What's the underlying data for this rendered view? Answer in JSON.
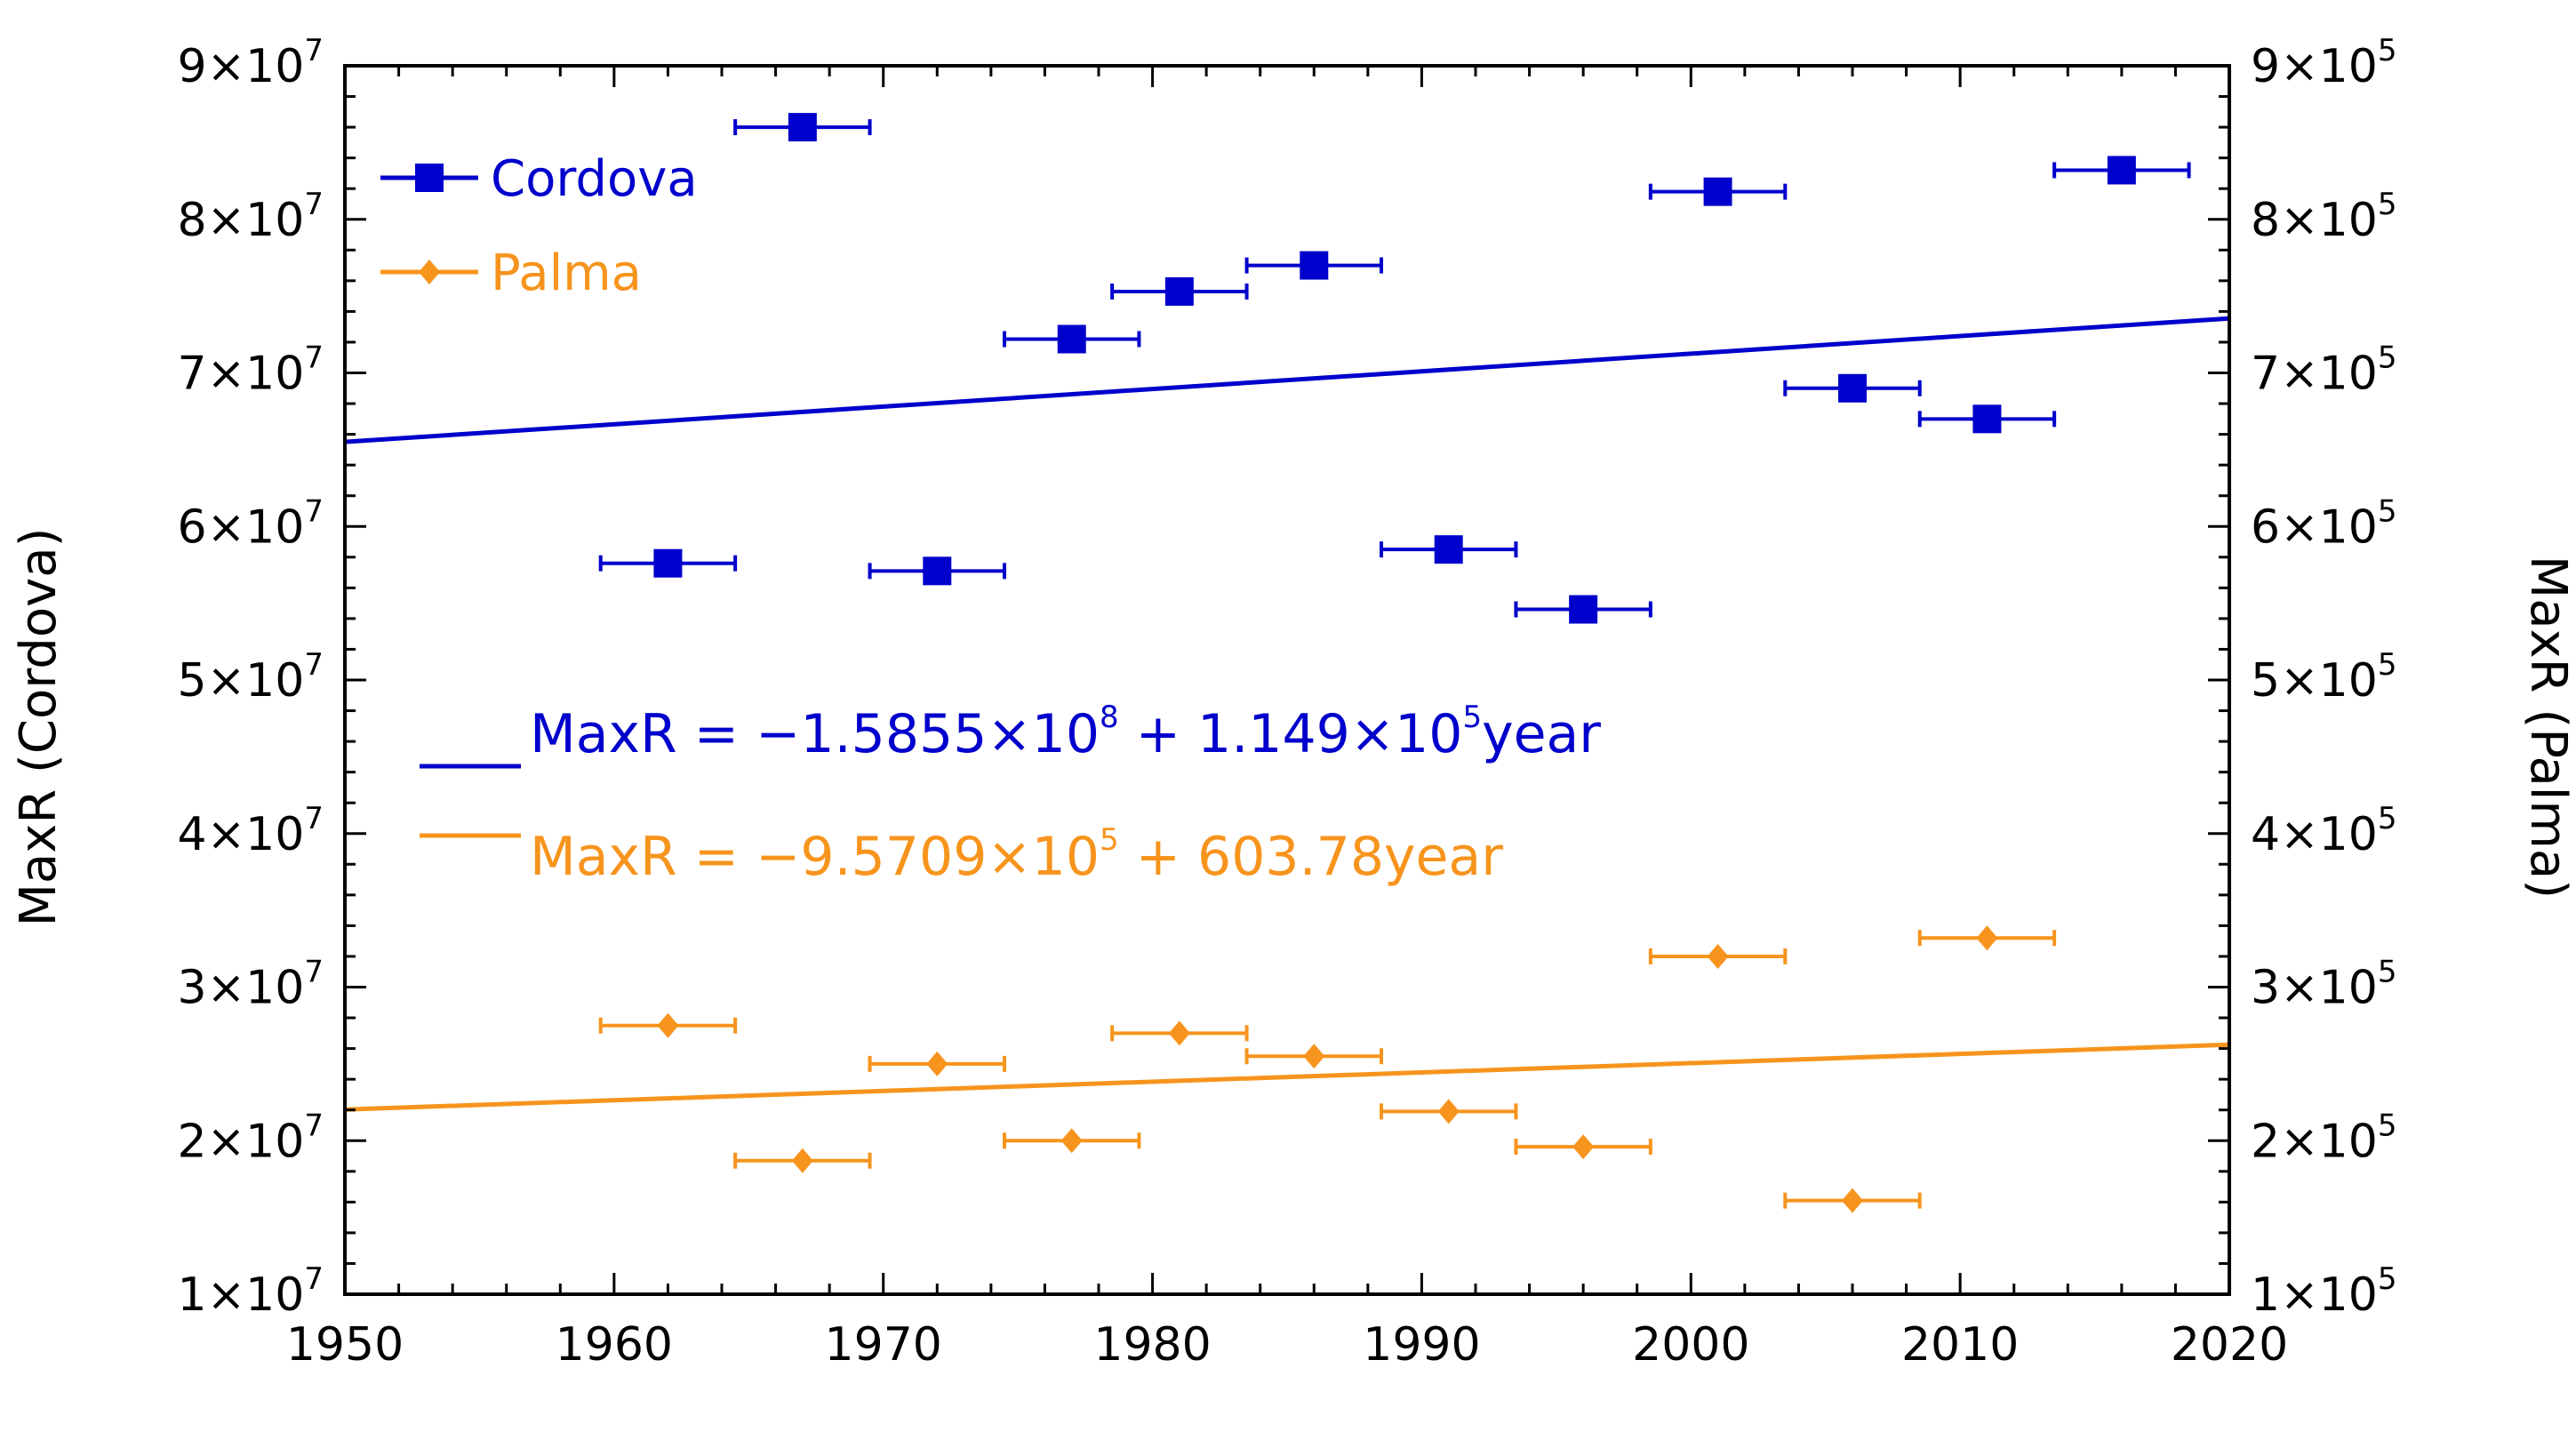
{
  "chart_data": {
    "type": "scatter",
    "title": "",
    "xlabel": "",
    "ylabel_left": "MaxR (Cordova)",
    "ylabel_right": "MaxR (Palma)",
    "xlim": [
      1950,
      2020
    ],
    "ylim_left": [
      10000000,
      90000000
    ],
    "ylim_right": [
      100000,
      900000
    ],
    "x_ticks": [
      "1950",
      "1960",
      "1970",
      "1980",
      "1990",
      "2000",
      "2010",
      "2020"
    ],
    "y_ticks_left": [
      {
        "mant": "1×10",
        "exp": "7"
      },
      {
        "mant": "2×10",
        "exp": "7"
      },
      {
        "mant": "3×10",
        "exp": "7"
      },
      {
        "mant": "4×10",
        "exp": "7"
      },
      {
        "mant": "5×10",
        "exp": "7"
      },
      {
        "mant": "6×10",
        "exp": "7"
      },
      {
        "mant": "7×10",
        "exp": "7"
      },
      {
        "mant": "8×10",
        "exp": "7"
      },
      {
        "mant": "9×10",
        "exp": "7"
      }
    ],
    "y_ticks_right": [
      {
        "mant": "1×10",
        "exp": "5"
      },
      {
        "mant": "2×10",
        "exp": "5"
      },
      {
        "mant": "3×10",
        "exp": "5"
      },
      {
        "mant": "4×10",
        "exp": "5"
      },
      {
        "mant": "5×10",
        "exp": "5"
      },
      {
        "mant": "6×10",
        "exp": "5"
      },
      {
        "mant": "7×10",
        "exp": "5"
      },
      {
        "mant": "8×10",
        "exp": "5"
      },
      {
        "mant": "9×10",
        "exp": "5"
      }
    ],
    "legend": [
      {
        "name": "Cordova",
        "color": "#0000cc",
        "marker": "square"
      },
      {
        "name": "Palma",
        "color": "#f7941d",
        "marker": "diamond"
      }
    ],
    "series": [
      {
        "name": "Cordova",
        "axis": "left",
        "color": "#0000cc",
        "marker": "square",
        "x_err": 2.5,
        "x": [
          1962,
          1967,
          1972,
          1977,
          1981,
          1986,
          1991,
          1996,
          2001,
          2006,
          2011,
          2016
        ],
        "y": [
          57600000,
          86000000,
          57100000,
          72200000,
          75300000,
          77000000,
          58500000,
          54600000,
          81800000,
          69000000,
          67000000,
          83200000
        ]
      },
      {
        "name": "Palma",
        "axis": "right",
        "color": "#f7941d",
        "marker": "diamond",
        "x_err": 2.5,
        "x": [
          1962,
          1967,
          1972,
          1977,
          1981,
          1986,
          1991,
          1996,
          2001,
          2006,
          2011
        ],
        "y": [
          275000,
          187000,
          250000,
          200000,
          270000,
          255000,
          219000,
          196000,
          320000,
          161000,
          332000
        ]
      }
    ],
    "fits": [
      {
        "name": "Cordova fit",
        "axis": "left",
        "color": "#0000cc",
        "intercept": -158550000,
        "slope": 114900,
        "label_parts": [
          "MaxR = −1.5855×10",
          "8",
          " + 1.149×10",
          "5",
          "year"
        ]
      },
      {
        "name": "Palma fit",
        "axis": "right",
        "color": "#f7941d",
        "intercept": -957090,
        "slope": 603.78,
        "label_parts": [
          "MaxR = −9.5709×10",
          "5",
          " + 603.78year"
        ]
      }
    ]
  }
}
